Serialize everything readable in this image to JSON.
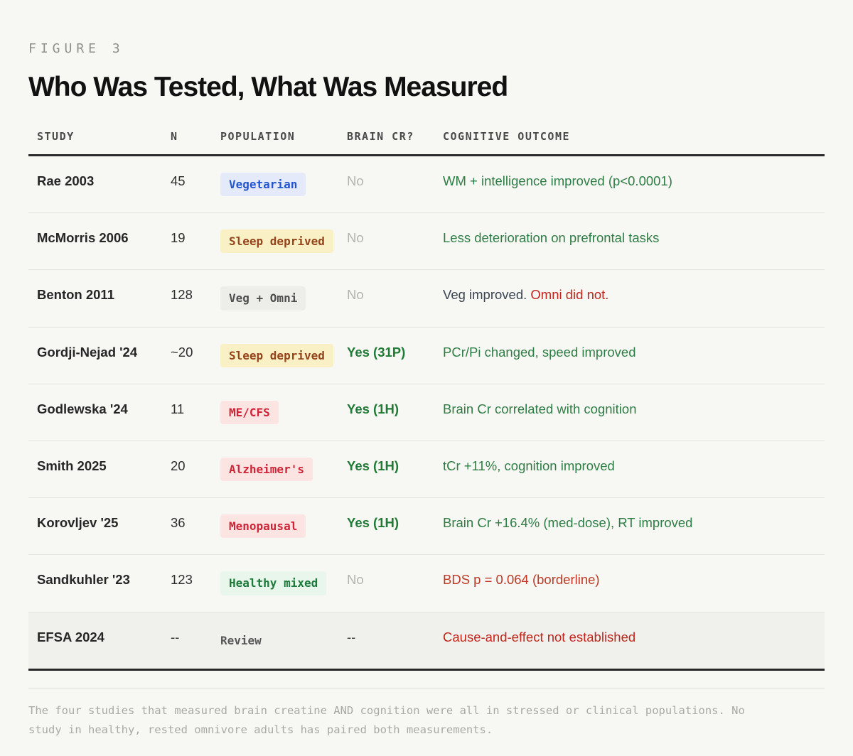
{
  "figure_label": "FIGURE 3",
  "title": "Who Was Tested, What Was Measured",
  "colors": {
    "page_background": "#f7f7f4",
    "outcome_green": "#2e7d44",
    "outcome_red": "#c1271d",
    "yes_green": "#1f7a35",
    "no_gray": "#b3b3b0",
    "badge_blue_bg": "#e4eafa",
    "badge_yellow_bg": "#faf0c6",
    "badge_pink_bg": "#fbe4e2",
    "badge_green_bg": "#e9f6eb",
    "badge_gray_bg": "#ededea"
  },
  "table": {
    "columns": {
      "study": "STUDY",
      "n": "N",
      "population": "POPULATION",
      "brain_cr": "BRAIN CR?",
      "outcome": "COGNITIVE OUTCOME"
    },
    "rows": [
      {
        "study": "Rae 2003",
        "n": "45",
        "population": "Vegetarian",
        "population_style": "blue",
        "brain_cr": "No",
        "outcome": "WM + intelligence improved (p<0.0001)",
        "outcome_style": "green"
      },
      {
        "study": "McMorris 2006",
        "n": "19",
        "population": "Sleep deprived",
        "population_style": "yellow",
        "brain_cr": "No",
        "outcome": "Less deterioration on prefrontal tasks",
        "outcome_style": "green"
      },
      {
        "study": "Benton 2011",
        "n": "128",
        "population": "Veg + Omni",
        "population_style": "gray",
        "brain_cr": "No",
        "outcome": "Veg improved. ",
        "outcome_style": "dark",
        "outcome_secondary": "Omni did not.",
        "outcome_secondary_style": "red"
      },
      {
        "study": "Gordji-Nejad '24",
        "n": "~20",
        "population": "Sleep deprived",
        "population_style": "yellow",
        "brain_cr": "Yes (31P)",
        "outcome": "PCr/Pi changed, speed improved",
        "outcome_style": "green"
      },
      {
        "study": "Godlewska '24",
        "n": "11",
        "population": "ME/CFS",
        "population_style": "pink",
        "brain_cr": "Yes (1H)",
        "outcome": "Brain Cr correlated with cognition",
        "outcome_style": "green"
      },
      {
        "study": "Smith 2025",
        "n": "20",
        "population": "Alzheimer's",
        "population_style": "pink",
        "brain_cr": "Yes (1H)",
        "outcome": "tCr +11%, cognition improved",
        "outcome_style": "green"
      },
      {
        "study": "Korovljev '25",
        "n": "36",
        "population": "Menopausal",
        "population_style": "pink",
        "brain_cr": "Yes (1H)",
        "outcome": "Brain Cr +16.4% (med-dose), RT improved",
        "outcome_style": "green"
      },
      {
        "study": "Sandkuhler '23",
        "n": "123",
        "population": "Healthy mixed",
        "population_style": "green",
        "brain_cr": "No",
        "outcome": "BDS p = 0.064 (borderline)",
        "outcome_style": "orange-red"
      },
      {
        "study": "EFSA 2024",
        "n": "--",
        "population": "Review",
        "population_style": "plain",
        "brain_cr": "--",
        "outcome": "Cause-and-effect not established",
        "outcome_style": "red"
      }
    ]
  },
  "footnote": "The four studies that measured brain creatine AND cognition were all in stressed or clinical populations. No study in healthy, rested omnivore adults has paired both measurements.",
  "chart_data": {
    "type": "table",
    "title": "Who Was Tested, What Was Measured",
    "figure": "FIGURE 3",
    "columns": [
      "STUDY",
      "N",
      "POPULATION",
      "BRAIN CR?",
      "COGNITIVE OUTCOME"
    ],
    "rows": [
      [
        "Rae 2003",
        "45",
        "Vegetarian",
        "No",
        "WM + intelligence improved (p<0.0001)"
      ],
      [
        "McMorris 2006",
        "19",
        "Sleep deprived",
        "No",
        "Less deterioration on prefrontal tasks"
      ],
      [
        "Benton 2011",
        "128",
        "Veg + Omni",
        "No",
        "Veg improved. Omni did not."
      ],
      [
        "Gordji-Nejad '24",
        "~20",
        "Sleep deprived",
        "Yes (31P)",
        "PCr/Pi changed, speed improved"
      ],
      [
        "Godlewska '24",
        "11",
        "ME/CFS",
        "Yes (1H)",
        "Brain Cr correlated with cognition"
      ],
      [
        "Smith 2025",
        "20",
        "Alzheimer's",
        "Yes (1H)",
        "tCr +11%, cognition improved"
      ],
      [
        "Korovljev '25",
        "36",
        "Menopausal",
        "Yes (1H)",
        "Brain Cr +16.4% (med-dose), RT improved"
      ],
      [
        "Sandkuhler '23",
        "123",
        "Healthy mixed",
        "No",
        "BDS p = 0.064 (borderline)"
      ],
      [
        "EFSA 2024",
        "--",
        "Review",
        "--",
        "Cause-and-effect not established"
      ]
    ],
    "annotation": "The four studies that measured brain creatine AND cognition were all in stressed or clinical populations. No study in healthy, rested omnivore adults has paired both measurements."
  }
}
